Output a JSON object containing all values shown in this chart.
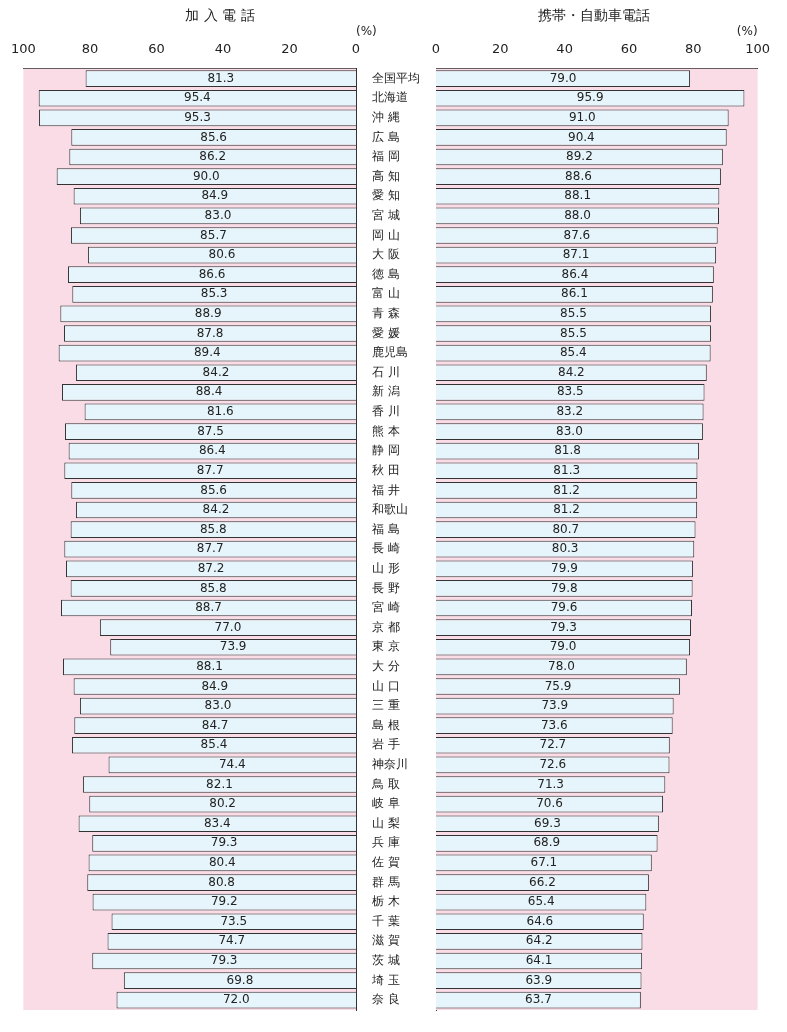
{
  "chart_data": [
    {
      "type": "bar",
      "orientation": "horizontal",
      "title": "加 入 電 話",
      "xlabel": "(%)",
      "xlim": [
        100,
        0
      ],
      "xticks": [
        100,
        80,
        60,
        40,
        20,
        0
      ],
      "grid": false,
      "legend": false,
      "categories": [
        "全国平均",
        "北海道",
        "沖 縄",
        "広 島",
        "福 岡",
        "高 知",
        "愛 知",
        "宮 城",
        "岡 山",
        "大 阪",
        "徳 島",
        "富 山",
        "青 森",
        "愛 媛",
        "鹿児島",
        "石 川",
        "新 潟",
        "香 川",
        "熊 本",
        "静 岡",
        "秋 田",
        "福 井",
        "和歌山",
        "福 島",
        "長 崎",
        "山 形",
        "長 野",
        "宮 崎",
        "京 都",
        "東 京",
        "大 分",
        "山 口",
        "三 重",
        "島 根",
        "岩 手",
        "神奈川",
        "鳥 取",
        "岐 阜",
        "山 梨",
        "兵 庫",
        "佐 賀",
        "群 馬",
        "栃 木",
        "千 葉",
        "滋 賀",
        "茨 城",
        "埼 玉",
        "奈 良"
      ],
      "series": [
        {
          "color": "#e6f5fb",
          "values": [
            81.3,
            95.4,
            95.3,
            85.6,
            86.2,
            90.0,
            84.9,
            83.0,
            85.7,
            80.6,
            86.6,
            85.3,
            88.9,
            87.8,
            89.4,
            84.2,
            88.4,
            81.6,
            87.5,
            86.4,
            87.7,
            85.6,
            84.2,
            85.8,
            87.7,
            87.2,
            85.8,
            88.7,
            77.0,
            73.9,
            88.1,
            84.9,
            83.0,
            84.7,
            85.4,
            74.4,
            82.1,
            80.2,
            83.4,
            79.3,
            80.4,
            80.8,
            79.2,
            73.5,
            74.7,
            79.3,
            69.8,
            72.0
          ],
          "value_labels": [
            "81.3",
            "95.4",
            "95.3",
            "85.6",
            "86.2",
            "90.0",
            "84.9",
            "83.0",
            "85.7",
            "80.6",
            "86.6",
            "85.3",
            "88.9",
            "87.8",
            "89.4",
            "84.2",
            "88.4",
            "81.6",
            "87.5",
            "86.4",
            "87.7",
            "85.6",
            "84.2",
            "85.8",
            "87.7",
            "87.2",
            "85.8",
            "88.7",
            "77.0",
            "73.9",
            "88.1",
            "84.9",
            "83.0",
            "84.7",
            "85.4",
            "74.4",
            "82.1",
            "80.2",
            "83.4",
            "79.3",
            "80.4",
            "80.8",
            "79.2",
            "73.5",
            "74.7",
            "79.3",
            "69.8",
            "72.0"
          ]
        }
      ]
    },
    {
      "type": "bar",
      "orientation": "horizontal",
      "title": "携帯・自動車電話",
      "xlabel": "(%)",
      "xlim": [
        0,
        100
      ],
      "xticks": [
        0,
        20,
        40,
        60,
        80,
        100
      ],
      "grid": false,
      "legend": false,
      "tick_labels": "x",
      "categories": [
        null,
        null,
        null,
        null,
        null,
        null,
        null,
        null,
        null,
        null,
        null,
        null,
        null,
        null,
        null,
        null,
        null,
        null,
        null,
        null,
        null,
        null,
        null,
        null,
        null,
        null,
        null,
        null,
        null,
        null,
        null,
        null,
        null,
        null,
        null,
        null,
        null,
        null,
        null,
        null,
        null,
        null,
        null,
        null,
        null,
        null,
        null,
        null
      ],
      "series": [
        {
          "color": "#e6f5fb",
          "values": [
            79.0,
            95.9,
            91.0,
            90.4,
            89.2,
            88.6,
            88.1,
            88.0,
            87.6,
            87.1,
            86.4,
            86.1,
            85.5,
            85.5,
            85.4,
            84.2,
            83.5,
            83.2,
            83.0,
            81.8,
            81.3,
            81.2,
            81.2,
            80.7,
            80.3,
            79.9,
            79.8,
            79.6,
            79.3,
            79.0,
            78.0,
            75.9,
            73.9,
            73.6,
            72.7,
            72.6,
            71.3,
            70.6,
            69.3,
            68.9,
            67.1,
            66.2,
            65.4,
            64.6,
            64.2,
            64.1,
            63.9,
            63.7
          ],
          "value_labels": [
            "79.0",
            "95.9",
            "91.0",
            "90.4",
            "89.2",
            "88.6",
            "88.1",
            "88.0",
            "87.6",
            "87.1",
            "86.4",
            "86.1",
            "85.5",
            "85.5",
            "85.4",
            "84.2",
            "83.5",
            "83.2",
            "83.0",
            "81.8",
            "81.3",
            "81.2",
            "81.2",
            "80.7",
            "80.3",
            "79.9",
            "79.8",
            "79.6",
            "79.3",
            "79.0",
            "78.0",
            "75.9",
            "73.9",
            "73.6",
            "72.7",
            "72.6",
            "71.3",
            "70.6",
            "69.3",
            "68.9",
            "67.1",
            "66.2",
            "65.4",
            "64.6",
            "64.2",
            "64.1",
            "63.9",
            "63.7"
          ]
        }
      ]
    }
  ]
}
